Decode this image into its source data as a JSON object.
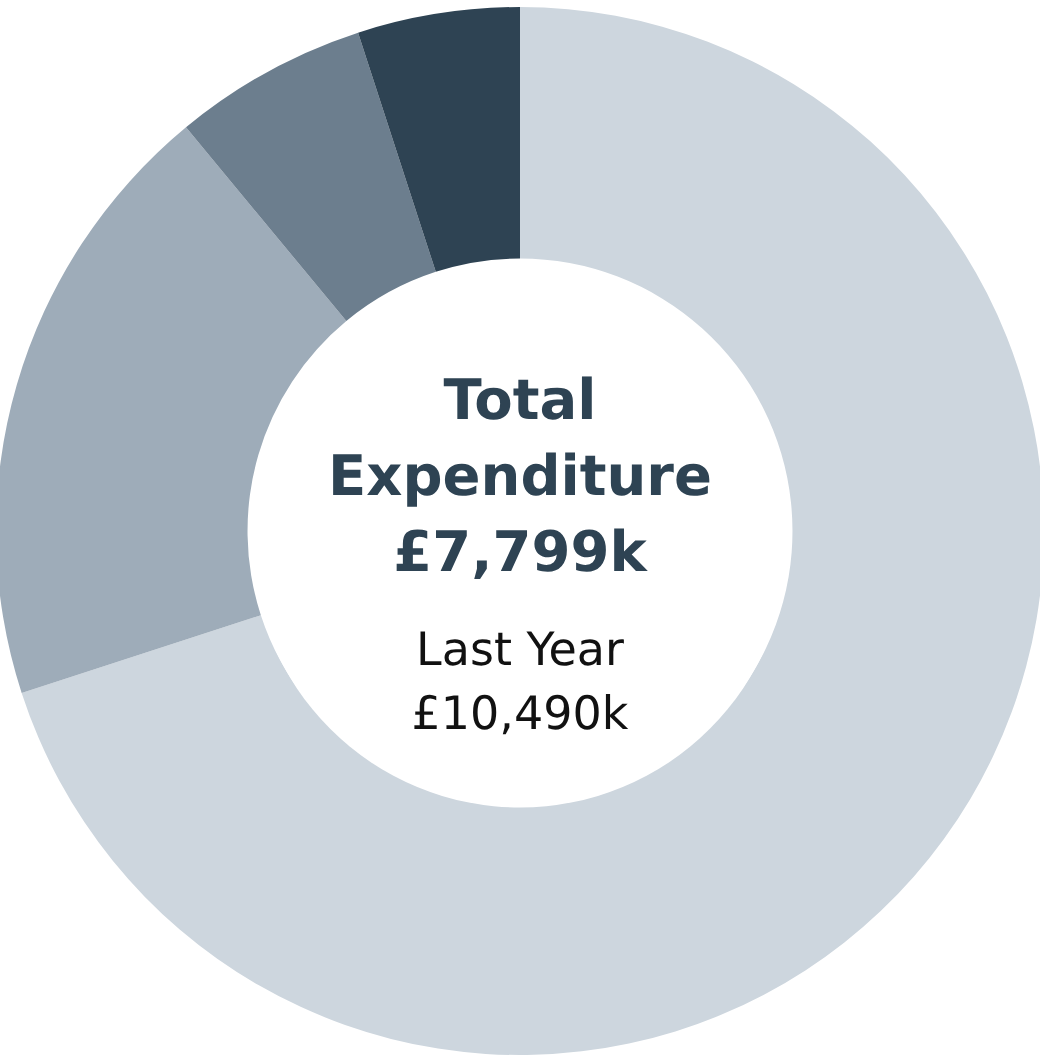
{
  "chart_data": {
    "type": "donut",
    "title": "Total Expenditure",
    "annotations": [
      "£7,799k",
      "Last Year",
      "£10,490k"
    ],
    "categories": [
      null,
      null,
      null,
      null
    ],
    "values": [
      70,
      19,
      6,
      5
    ],
    "colors": [
      "#cdd6de",
      "#9eacb9",
      "#6c7e8e",
      "#2e4353"
    ]
  }
}
